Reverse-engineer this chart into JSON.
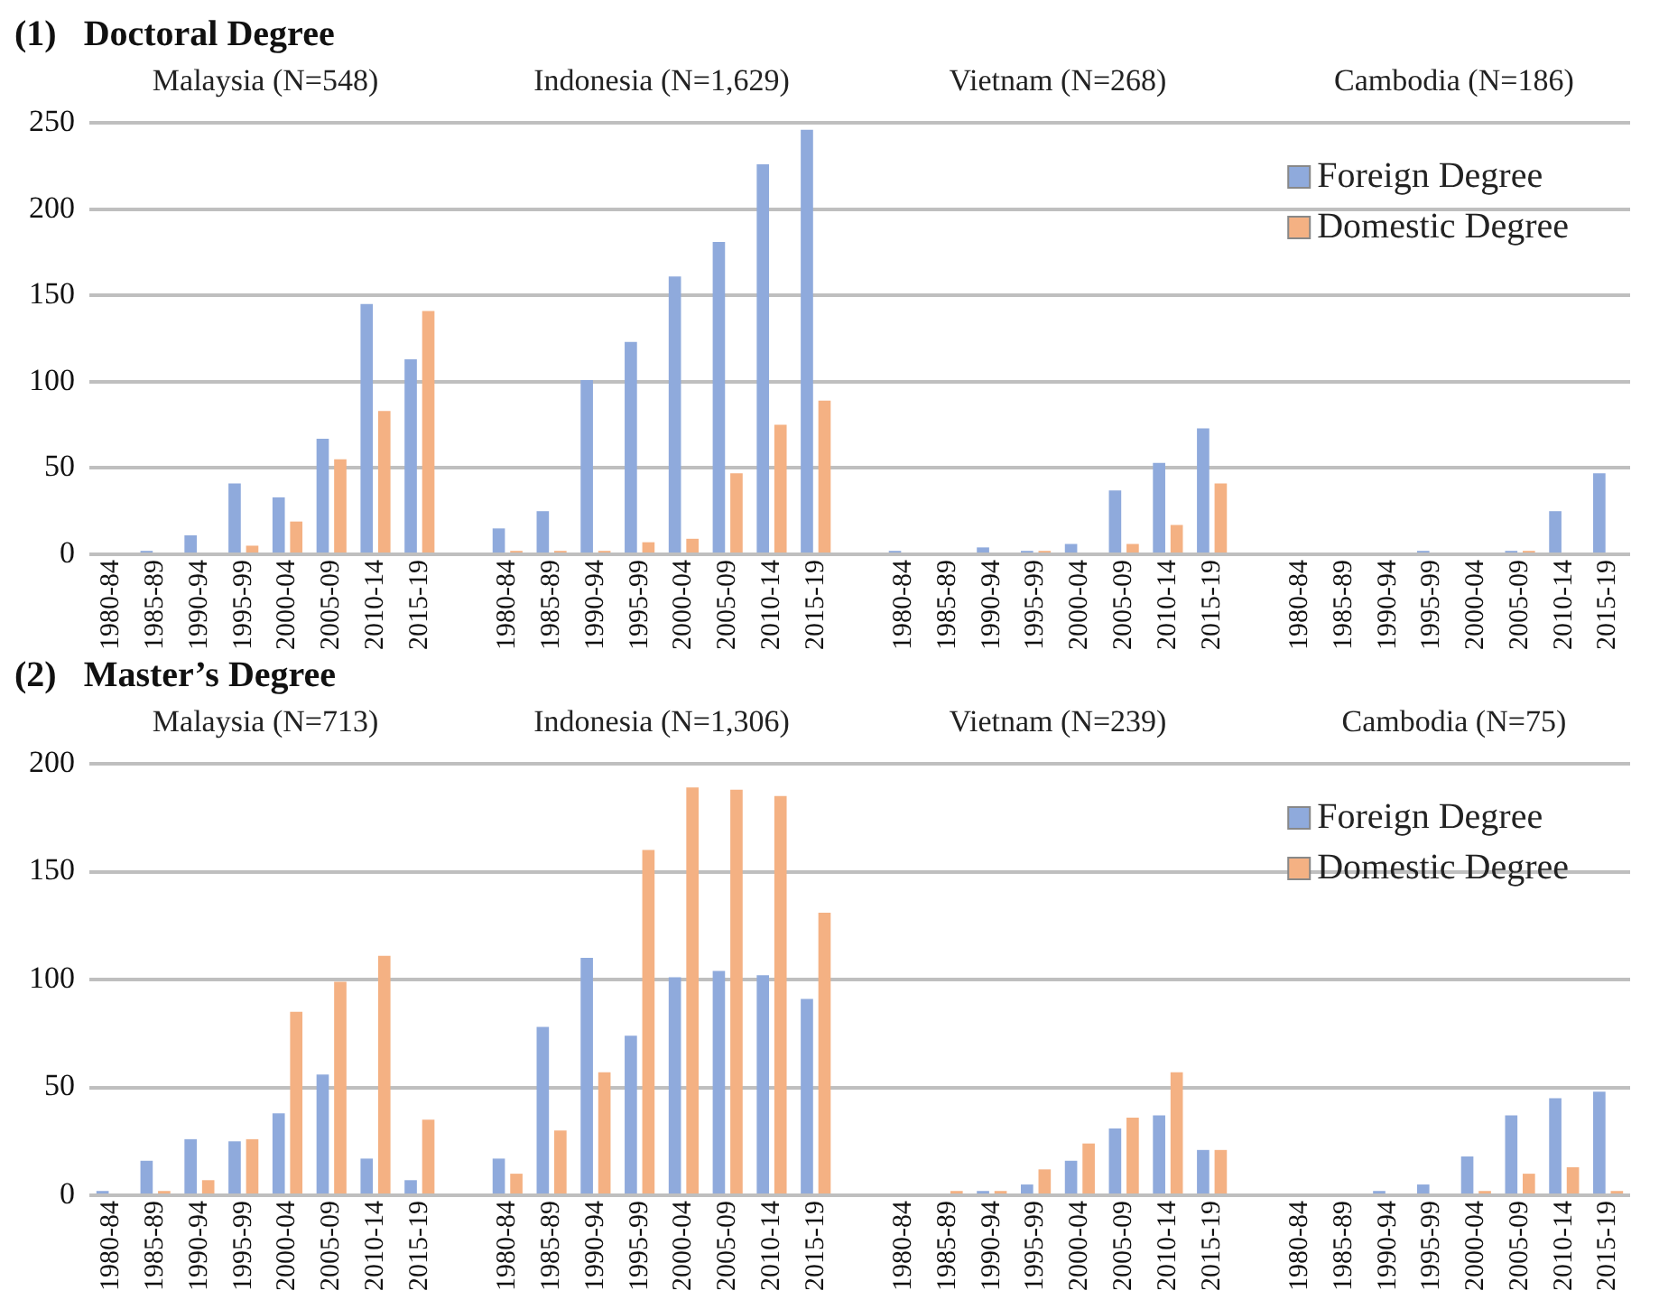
{
  "chart_data": [
    {
      "type": "bar",
      "title": "(1)   Doctoral Degree",
      "annotations": [
        "Malaysia (N=548)",
        "Indonesia (N=1,629)",
        "Vietnam (N=268)",
        "Cambodia (N=186)"
      ],
      "categories": [
        "1980-84",
        "1985-89",
        "1990-94",
        "1995-99",
        "2000-04",
        "2005-09",
        "2010-14",
        "2015-19",
        null,
        "1980-84",
        "1985-89",
        "1990-94",
        "1995-99",
        "2000-04",
        "2005-09",
        "2010-14",
        "2015-19",
        null,
        "1980-84",
        "1985-89",
        "1990-94",
        "1995-99",
        "2000-04",
        "2005-09",
        "2010-14",
        "2015-19",
        null,
        "1980-84",
        "1985-89",
        "1990-94",
        "1995-99",
        "2000-04",
        "2005-09",
        "2010-14",
        "2015-19"
      ],
      "series": [
        {
          "name": "Foreign Degree",
          "color": "#8faadc",
          "values": [
            0,
            2,
            11,
            41,
            33,
            67,
            145,
            113,
            null,
            15,
            25,
            101,
            123,
            161,
            181,
            226,
            246,
            null,
            2,
            0,
            4,
            2,
            6,
            37,
            53,
            73,
            null,
            0,
            0,
            0,
            2,
            0,
            2,
            25,
            47
          ]
        },
        {
          "name": "Domestic Degree",
          "color": "#f4b183",
          "values": [
            0,
            0,
            0,
            5,
            19,
            55,
            83,
            141,
            null,
            2,
            2,
            2,
            7,
            9,
            47,
            75,
            89,
            null,
            0,
            0,
            0,
            2,
            0,
            6,
            17,
            41,
            null,
            0,
            0,
            0,
            0,
            0,
            2,
            0,
            0
          ]
        }
      ],
      "ylim": [
        0,
        250
      ],
      "yticks": [
        0,
        50,
        100,
        150,
        200,
        250
      ],
      "grid": "y",
      "legend": "top right"
    },
    {
      "type": "bar",
      "title": "(2)   Master’s Degree",
      "annotations": [
        "Malaysia (N=713)",
        "Indonesia (N=1,306)",
        "Vietnam (N=239)",
        "Cambodia (N=75)"
      ],
      "categories": [
        "1980-84",
        "1985-89",
        "1990-94",
        "1995-99",
        "2000-04",
        "2005-09",
        "2010-14",
        "2015-19",
        null,
        "1980-84",
        "1985-89",
        "1990-94",
        "1995-99",
        "2000-04",
        "2005-09",
        "2010-14",
        "2015-19",
        null,
        "1980-84",
        "1985-89",
        "1990-94",
        "1995-99",
        "2000-04",
        "2005-09",
        "2010-14",
        "2015-19",
        null,
        "1980-84",
        "1985-89",
        "1990-94",
        "1995-99",
        "2000-04",
        "2005-09",
        "2010-14",
        "2015-19"
      ],
      "series": [
        {
          "name": "Foreign Degree",
          "color": "#8faadc",
          "values": [
            2,
            16,
            26,
            25,
            38,
            56,
            17,
            7,
            null,
            17,
            78,
            110,
            74,
            101,
            104,
            102,
            91,
            null,
            0,
            0,
            2,
            5,
            16,
            31,
            37,
            21,
            null,
            0,
            0,
            2,
            5,
            18,
            37,
            45,
            48
          ]
        },
        {
          "name": "Domestic Degree",
          "color": "#f4b183",
          "values": [
            0,
            2,
            7,
            26,
            85,
            99,
            111,
            35,
            null,
            10,
            30,
            57,
            160,
            189,
            188,
            185,
            131,
            null,
            0,
            2,
            2,
            12,
            24,
            36,
            57,
            21,
            null,
            0,
            0,
            0,
            0,
            2,
            10,
            13,
            2
          ]
        }
      ],
      "ylim": [
        0,
        200
      ],
      "yticks": [
        0,
        50,
        100,
        150,
        200
      ],
      "grid": "y",
      "legend": "top right"
    }
  ]
}
